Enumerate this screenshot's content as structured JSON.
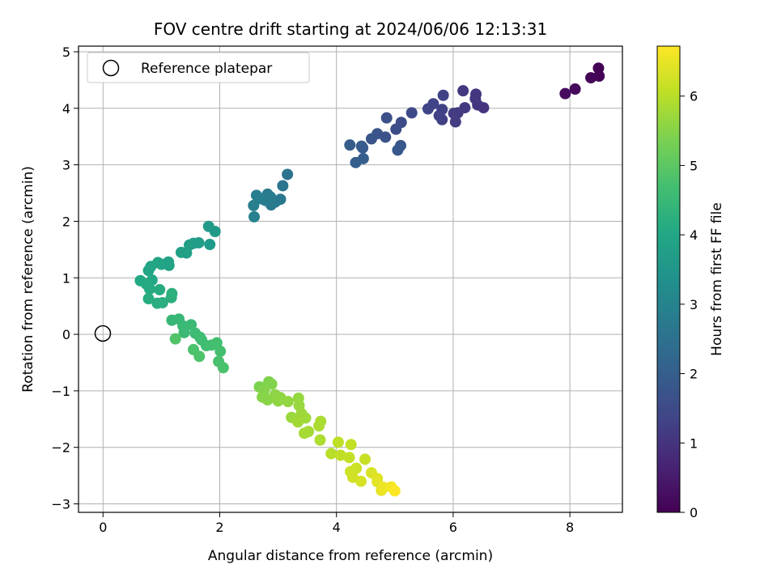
{
  "chart_data": {
    "type": "scatter",
    "title": "FOV centre drift starting at 2024/06/06 12:13:31",
    "xlabel": "Angular distance from reference (arcmin)",
    "ylabel": "Rotation from reference (arcmin)",
    "xlim": [
      -0.42,
      8.9
    ],
    "ylim": [
      -3.15,
      5.1
    ],
    "xticks": [
      0,
      2,
      4,
      6,
      8
    ],
    "yticks": [
      -3,
      -2,
      -1,
      0,
      1,
      2,
      3,
      4,
      5
    ],
    "grid": true,
    "legend": {
      "placement": "upper-left",
      "entries": [
        "Reference platepar"
      ]
    },
    "reference_point": {
      "x": 0,
      "y": 0,
      "label": "Reference platepar"
    },
    "colorbar": {
      "label": "Hours from first FF file",
      "range": [
        0,
        6.72
      ],
      "ticks": [
        0,
        1,
        2,
        3,
        4,
        5,
        6
      ],
      "colormap": "viridis"
    },
    "points": [
      {
        "x": 8.49,
        "y": 4.71,
        "h": 0.03
      },
      {
        "x": 8.5,
        "y": 4.57,
        "h": 0.05
      },
      {
        "x": 8.36,
        "y": 4.54,
        "h": 0.08
      },
      {
        "x": 8.09,
        "y": 4.34,
        "h": 0.15
      },
      {
        "x": 7.92,
        "y": 4.26,
        "h": 0.2
      },
      {
        "x": 6.52,
        "y": 4.01,
        "h": 1.0
      },
      {
        "x": 6.42,
        "y": 4.06,
        "h": 1.02
      },
      {
        "x": 6.38,
        "y": 4.17,
        "h": 1.05
      },
      {
        "x": 6.39,
        "y": 4.25,
        "h": 1.08
      },
      {
        "x": 6.17,
        "y": 4.31,
        "h": 1.1
      },
      {
        "x": 6.2,
        "y": 4.01,
        "h": 1.12
      },
      {
        "x": 6.08,
        "y": 3.92,
        "h": 1.15
      },
      {
        "x": 6.01,
        "y": 3.91,
        "h": 1.18
      },
      {
        "x": 6.04,
        "y": 3.76,
        "h": 1.2
      },
      {
        "x": 5.81,
        "y": 3.8,
        "h": 1.25
      },
      {
        "x": 5.76,
        "y": 3.87,
        "h": 1.28
      },
      {
        "x": 5.81,
        "y": 3.98,
        "h": 1.3
      },
      {
        "x": 5.83,
        "y": 4.23,
        "h": 1.32
      },
      {
        "x": 5.66,
        "y": 4.08,
        "h": 1.35
      },
      {
        "x": 5.57,
        "y": 3.99,
        "h": 1.38
      },
      {
        "x": 5.29,
        "y": 3.92,
        "h": 1.5
      },
      {
        "x": 5.11,
        "y": 3.75,
        "h": 1.55
      },
      {
        "x": 5.02,
        "y": 3.63,
        "h": 1.6
      },
      {
        "x": 4.86,
        "y": 3.83,
        "h": 1.65
      },
      {
        "x": 4.84,
        "y": 3.49,
        "h": 1.7
      },
      {
        "x": 4.7,
        "y": 3.55,
        "h": 1.75
      },
      {
        "x": 4.6,
        "y": 3.46,
        "h": 1.8
      },
      {
        "x": 5.1,
        "y": 3.34,
        "h": 1.82
      },
      {
        "x": 5.05,
        "y": 3.26,
        "h": 1.85
      },
      {
        "x": 4.45,
        "y": 3.3,
        "h": 1.9
      },
      {
        "x": 4.43,
        "y": 3.33,
        "h": 1.92
      },
      {
        "x": 4.23,
        "y": 3.35,
        "h": 1.95
      },
      {
        "x": 4.46,
        "y": 3.11,
        "h": 1.98
      },
      {
        "x": 4.33,
        "y": 3.04,
        "h": 2.0
      },
      {
        "x": 3.16,
        "y": 2.83,
        "h": 2.55
      },
      {
        "x": 3.08,
        "y": 2.63,
        "h": 2.6
      },
      {
        "x": 3.04,
        "y": 2.39,
        "h": 2.65
      },
      {
        "x": 2.95,
        "y": 2.34,
        "h": 2.7
      },
      {
        "x": 2.88,
        "y": 2.29,
        "h": 2.72
      },
      {
        "x": 2.82,
        "y": 2.48,
        "h": 2.75
      },
      {
        "x": 2.78,
        "y": 2.37,
        "h": 2.78
      },
      {
        "x": 2.87,
        "y": 2.43,
        "h": 2.8
      },
      {
        "x": 2.7,
        "y": 2.4,
        "h": 2.82
      },
      {
        "x": 2.63,
        "y": 2.46,
        "h": 2.85
      },
      {
        "x": 2.58,
        "y": 2.28,
        "h": 2.88
      },
      {
        "x": 2.59,
        "y": 2.08,
        "h": 2.9
      },
      {
        "x": 1.92,
        "y": 1.82,
        "h": 3.6
      },
      {
        "x": 1.81,
        "y": 1.91,
        "h": 3.62
      },
      {
        "x": 1.83,
        "y": 1.59,
        "h": 3.65
      },
      {
        "x": 1.64,
        "y": 1.62,
        "h": 3.7
      },
      {
        "x": 1.55,
        "y": 1.61,
        "h": 3.72
      },
      {
        "x": 1.48,
        "y": 1.58,
        "h": 3.75
      },
      {
        "x": 1.43,
        "y": 1.44,
        "h": 3.78
      },
      {
        "x": 1.34,
        "y": 1.45,
        "h": 3.8
      },
      {
        "x": 1.12,
        "y": 1.28,
        "h": 3.85
      },
      {
        "x": 1.13,
        "y": 1.22,
        "h": 3.88
      },
      {
        "x": 1.0,
        "y": 1.24,
        "h": 3.9
      },
      {
        "x": 0.94,
        "y": 1.27,
        "h": 3.92
      },
      {
        "x": 0.82,
        "y": 1.2,
        "h": 3.95
      },
      {
        "x": 0.78,
        "y": 1.13,
        "h": 3.98
      },
      {
        "x": 0.84,
        "y": 0.96,
        "h": 4.0
      },
      {
        "x": 0.64,
        "y": 0.95,
        "h": 4.05
      },
      {
        "x": 0.74,
        "y": 0.89,
        "h": 4.08
      },
      {
        "x": 0.8,
        "y": 0.8,
        "h": 4.1
      },
      {
        "x": 0.97,
        "y": 0.79,
        "h": 4.12
      },
      {
        "x": 0.78,
        "y": 0.63,
        "h": 4.15
      },
      {
        "x": 0.93,
        "y": 0.55,
        "h": 4.18
      },
      {
        "x": 1.02,
        "y": 0.56,
        "h": 4.2
      },
      {
        "x": 1.17,
        "y": 0.65,
        "h": 4.22
      },
      {
        "x": 1.18,
        "y": 0.72,
        "h": 4.25
      },
      {
        "x": 1.18,
        "y": 0.25,
        "h": 4.45
      },
      {
        "x": 1.3,
        "y": 0.27,
        "h": 4.48
      },
      {
        "x": 1.37,
        "y": 0.15,
        "h": 4.5
      },
      {
        "x": 1.39,
        "y": 0.03,
        "h": 4.52
      },
      {
        "x": 1.51,
        "y": 0.17,
        "h": 4.55
      },
      {
        "x": 1.58,
        "y": 0.02,
        "h": 4.58
      },
      {
        "x": 1.66,
        "y": -0.05,
        "h": 4.6
      },
      {
        "x": 1.69,
        "y": -0.1,
        "h": 4.62
      },
      {
        "x": 1.77,
        "y": -0.2,
        "h": 4.65
      },
      {
        "x": 1.86,
        "y": -0.19,
        "h": 4.68
      },
      {
        "x": 1.95,
        "y": -0.15,
        "h": 4.7
      },
      {
        "x": 2.01,
        "y": -0.3,
        "h": 4.72
      },
      {
        "x": 1.98,
        "y": -0.48,
        "h": 4.75
      },
      {
        "x": 2.06,
        "y": -0.59,
        "h": 4.78
      },
      {
        "x": 1.55,
        "y": -0.27,
        "h": 4.8
      },
      {
        "x": 1.65,
        "y": -0.39,
        "h": 4.82
      },
      {
        "x": 1.24,
        "y": -0.08,
        "h": 4.85
      },
      {
        "x": 2.68,
        "y": -0.93,
        "h": 5.4
      },
      {
        "x": 2.84,
        "y": -0.84,
        "h": 5.42
      },
      {
        "x": 2.89,
        "y": -0.88,
        "h": 5.45
      },
      {
        "x": 2.76,
        "y": -1.0,
        "h": 5.48
      },
      {
        "x": 2.73,
        "y": -1.11,
        "h": 5.5
      },
      {
        "x": 2.82,
        "y": -1.16,
        "h": 5.52
      },
      {
        "x": 2.95,
        "y": -1.07,
        "h": 5.55
      },
      {
        "x": 3.04,
        "y": -1.12,
        "h": 5.58
      },
      {
        "x": 3.0,
        "y": -1.18,
        "h": 5.6
      },
      {
        "x": 3.17,
        "y": -1.19,
        "h": 5.62
      },
      {
        "x": 3.35,
        "y": -1.13,
        "h": 5.65
      },
      {
        "x": 3.36,
        "y": -1.26,
        "h": 5.68
      },
      {
        "x": 3.23,
        "y": -1.47,
        "h": 5.7
      },
      {
        "x": 3.4,
        "y": -1.4,
        "h": 5.72
      },
      {
        "x": 3.47,
        "y": -1.48,
        "h": 5.75
      },
      {
        "x": 3.34,
        "y": -1.55,
        "h": 5.78
      },
      {
        "x": 3.52,
        "y": -1.72,
        "h": 5.8
      },
      {
        "x": 3.45,
        "y": -1.75,
        "h": 5.82
      },
      {
        "x": 3.73,
        "y": -1.54,
        "h": 5.85
      },
      {
        "x": 3.7,
        "y": -1.62,
        "h": 5.88
      },
      {
        "x": 3.72,
        "y": -1.87,
        "h": 5.9
      },
      {
        "x": 3.91,
        "y": -2.11,
        "h": 6.0
      },
      {
        "x": 4.03,
        "y": -1.91,
        "h": 6.05
      },
      {
        "x": 4.07,
        "y": -2.14,
        "h": 6.08
      },
      {
        "x": 4.25,
        "y": -1.95,
        "h": 6.1
      },
      {
        "x": 4.22,
        "y": -2.18,
        "h": 6.12
      },
      {
        "x": 4.49,
        "y": -2.21,
        "h": 6.15
      },
      {
        "x": 4.34,
        "y": -2.37,
        "h": 6.2
      },
      {
        "x": 4.24,
        "y": -2.43,
        "h": 6.22
      },
      {
        "x": 4.28,
        "y": -2.53,
        "h": 6.25
      },
      {
        "x": 4.42,
        "y": -2.6,
        "h": 6.3
      },
      {
        "x": 4.6,
        "y": -2.45,
        "h": 6.35
      },
      {
        "x": 4.7,
        "y": -2.55,
        "h": 6.4
      },
      {
        "x": 4.7,
        "y": -2.61,
        "h": 6.45
      },
      {
        "x": 4.77,
        "y": -2.76,
        "h": 6.5
      },
      {
        "x": 4.81,
        "y": -2.71,
        "h": 6.55
      },
      {
        "x": 4.94,
        "y": -2.7,
        "h": 6.6
      },
      {
        "x": 5.0,
        "y": -2.77,
        "h": 6.7
      }
    ]
  }
}
